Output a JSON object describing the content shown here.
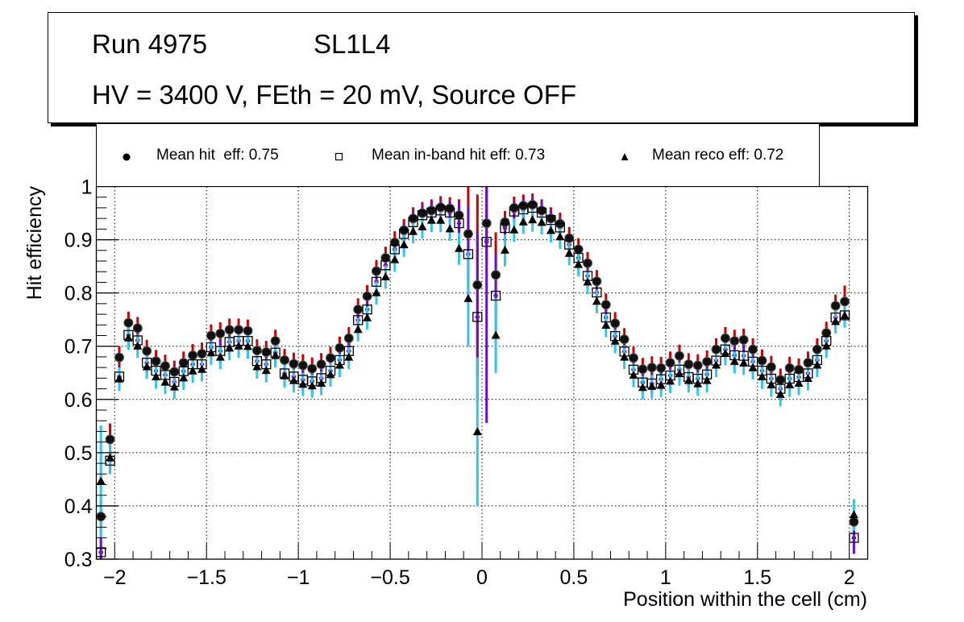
{
  "header": {
    "run_label": "Run 4975",
    "layer_label": "SL1L4",
    "conditions": "HV = 3400 V, FEth = 20 mV, Source OFF"
  },
  "legend": [
    {
      "marker": "filled-circle",
      "label": "Mean hit  eff: 0.75"
    },
    {
      "marker": "open-square",
      "label": "Mean in-band hit eff: 0.73"
    },
    {
      "marker": "filled-triangle",
      "label": "Mean reco eff: 0.72"
    }
  ],
  "chart_data": {
    "type": "scatter",
    "title": "Run 4975 SL1L4 — HV = 3400 V, FEth = 20 mV, Source OFF",
    "xlabel": "Position within the cell (cm)",
    "ylabel": "Hit efficiency",
    "xlim": [
      -2.1,
      2.1
    ],
    "ylim": [
      0.3,
      1.0
    ],
    "grid": true,
    "legend_position": "top",
    "xticks": [
      -2,
      -1.5,
      -1,
      -0.5,
      0,
      0.5,
      1,
      1.5,
      2
    ],
    "xtick_labels": [
      "−2",
      "−1.5",
      "−1",
      "−0.5",
      "0",
      "0.5",
      "1",
      "1.5",
      "2"
    ],
    "yticks": [
      0.3,
      0.4,
      0.5,
      0.6,
      0.7,
      0.8,
      0.9,
      1.0
    ],
    "ytick_labels": [
      "0.3",
      "0.4",
      "0.5",
      "0.6",
      "0.7",
      "0.8",
      "0.9",
      "1"
    ],
    "x": [
      -2.075,
      -2.025,
      -1.975,
      -1.925,
      -1.875,
      -1.825,
      -1.775,
      -1.725,
      -1.675,
      -1.625,
      -1.575,
      -1.525,
      -1.475,
      -1.425,
      -1.375,
      -1.325,
      -1.275,
      -1.225,
      -1.175,
      -1.125,
      -1.075,
      -1.025,
      -0.975,
      -0.925,
      -0.875,
      -0.825,
      -0.775,
      -0.725,
      -0.675,
      -0.625,
      -0.575,
      -0.525,
      -0.475,
      -0.425,
      -0.375,
      -0.325,
      -0.275,
      -0.225,
      -0.175,
      -0.125,
      -0.075,
      -0.025,
      0.025,
      0.075,
      0.125,
      0.175,
      0.225,
      0.275,
      0.325,
      0.375,
      0.425,
      0.475,
      0.525,
      0.575,
      0.625,
      0.675,
      0.725,
      0.775,
      0.825,
      0.875,
      0.925,
      0.975,
      1.025,
      1.075,
      1.125,
      1.175,
      1.225,
      1.275,
      1.325,
      1.375,
      1.425,
      1.475,
      1.525,
      1.575,
      1.625,
      1.675,
      1.725,
      1.775,
      1.825,
      1.875,
      1.925,
      1.975,
      2.025
    ],
    "series": [
      {
        "name": "Mean hit  eff: 0.75",
        "marker": "filled-circle",
        "color": "#000000",
        "error_color": "#cc0000",
        "values": [
          0.38,
          0.525,
          0.679,
          0.744,
          0.734,
          0.691,
          0.672,
          0.663,
          0.652,
          0.669,
          0.683,
          0.686,
          0.72,
          0.724,
          0.731,
          0.731,
          0.729,
          0.692,
          0.689,
          0.71,
          0.674,
          0.667,
          0.664,
          0.658,
          0.666,
          0.678,
          0.697,
          0.715,
          0.769,
          0.794,
          0.841,
          0.866,
          0.895,
          0.918,
          0.94,
          0.95,
          0.955,
          0.961,
          0.959,
          0.946,
          0.911,
          0.815,
          0.931,
          0.834,
          0.933,
          0.96,
          0.964,
          0.966,
          0.955,
          0.94,
          0.93,
          0.903,
          0.882,
          0.856,
          0.822,
          0.778,
          0.743,
          0.713,
          0.678,
          0.657,
          0.66,
          0.659,
          0.669,
          0.682,
          0.666,
          0.664,
          0.671,
          0.694,
          0.715,
          0.71,
          0.712,
          0.694,
          0.673,
          0.661,
          0.637,
          0.659,
          0.656,
          0.669,
          0.694,
          0.725,
          0.776,
          0.784,
          0.37
        ],
        "errors": [
          0.03,
          0.03,
          0.021,
          0.021,
          0.021,
          0.021,
          0.021,
          0.021,
          0.021,
          0.021,
          0.021,
          0.021,
          0.021,
          0.021,
          0.021,
          0.021,
          0.021,
          0.021,
          0.021,
          0.021,
          0.021,
          0.021,
          0.021,
          0.021,
          0.021,
          0.021,
          0.021,
          0.021,
          0.021,
          0.021,
          0.021,
          0.021,
          0.021,
          0.021,
          0.021,
          0.021,
          0.021,
          0.021,
          0.021,
          0.03,
          0.09,
          0.17,
          0.07,
          0.08,
          0.021,
          0.021,
          0.021,
          0.021,
          0.021,
          0.021,
          0.021,
          0.021,
          0.021,
          0.021,
          0.021,
          0.021,
          0.021,
          0.021,
          0.021,
          0.021,
          0.021,
          0.021,
          0.021,
          0.021,
          0.021,
          0.021,
          0.021,
          0.021,
          0.021,
          0.021,
          0.021,
          0.021,
          0.021,
          0.021,
          0.021,
          0.021,
          0.021,
          0.021,
          0.021,
          0.021,
          0.021,
          0.03,
          0.02
        ]
      },
      {
        "name": "Mean in-band hit eff: 0.73",
        "marker": "open-square",
        "color": "#000000",
        "error_color": "#6a0dcc",
        "values": [
          0.313,
          0.485,
          0.643,
          0.721,
          0.711,
          0.669,
          0.654,
          0.646,
          0.633,
          0.653,
          0.666,
          0.666,
          0.698,
          0.691,
          0.708,
          0.71,
          0.71,
          0.672,
          0.666,
          0.688,
          0.649,
          0.643,
          0.637,
          0.634,
          0.64,
          0.654,
          0.674,
          0.691,
          0.749,
          0.769,
          0.821,
          0.852,
          0.882,
          0.911,
          0.933,
          0.946,
          0.951,
          0.955,
          0.951,
          0.931,
          0.873,
          0.755,
          0.896,
          0.795,
          0.922,
          0.953,
          0.957,
          0.96,
          0.951,
          0.937,
          0.923,
          0.891,
          0.866,
          0.832,
          0.801,
          0.754,
          0.719,
          0.69,
          0.656,
          0.632,
          0.63,
          0.638,
          0.645,
          0.656,
          0.642,
          0.639,
          0.647,
          0.673,
          0.694,
          0.683,
          0.682,
          0.671,
          0.654,
          0.639,
          0.62,
          0.639,
          0.642,
          0.649,
          0.674,
          0.71,
          0.754,
          0.758,
          0.34
        ],
        "errors": [
          0.03,
          0.025,
          0.021,
          0.021,
          0.021,
          0.021,
          0.021,
          0.021,
          0.021,
          0.021,
          0.021,
          0.021,
          0.021,
          0.021,
          0.021,
          0.021,
          0.021,
          0.021,
          0.021,
          0.021,
          0.021,
          0.021,
          0.021,
          0.021,
          0.021,
          0.021,
          0.021,
          0.021,
          0.021,
          0.021,
          0.021,
          0.021,
          0.021,
          0.021,
          0.021,
          0.021,
          0.021,
          0.021,
          0.021,
          0.04,
          0.09,
          0.16,
          0.34,
          0.08,
          0.021,
          0.021,
          0.021,
          0.021,
          0.021,
          0.021,
          0.021,
          0.021,
          0.021,
          0.021,
          0.021,
          0.021,
          0.021,
          0.021,
          0.021,
          0.021,
          0.021,
          0.021,
          0.021,
          0.021,
          0.021,
          0.021,
          0.021,
          0.021,
          0.021,
          0.021,
          0.021,
          0.021,
          0.021,
          0.021,
          0.021,
          0.021,
          0.021,
          0.021,
          0.021,
          0.021,
          0.021,
          0.021,
          0.03
        ]
      },
      {
        "name": "Mean reco eff: 0.72",
        "marker": "filled-triangle",
        "color": "#000000",
        "error_color": "#33c4ee",
        "values": [
          0.446,
          0.49,
          0.638,
          0.715,
          0.7,
          0.661,
          0.642,
          0.632,
          0.623,
          0.64,
          0.653,
          0.656,
          0.687,
          0.679,
          0.696,
          0.7,
          0.699,
          0.661,
          0.654,
          0.682,
          0.644,
          0.635,
          0.628,
          0.625,
          0.63,
          0.646,
          0.664,
          0.679,
          0.731,
          0.753,
          0.8,
          0.83,
          0.862,
          0.89,
          0.915,
          0.924,
          0.936,
          0.936,
          0.92,
          0.883,
          0.789,
          0.539,
          null,
          0.72,
          0.88,
          0.918,
          0.933,
          0.937,
          0.932,
          0.917,
          0.905,
          0.874,
          0.853,
          0.82,
          0.784,
          0.739,
          0.709,
          0.679,
          0.645,
          0.622,
          0.624,
          0.626,
          0.634,
          0.648,
          0.635,
          0.629,
          0.635,
          0.664,
          0.686,
          0.671,
          0.668,
          0.659,
          0.642,
          0.627,
          0.609,
          0.627,
          0.63,
          0.639,
          0.664,
          0.7,
          0.746,
          0.757,
          0.383
        ],
        "errors": [
          0.105,
          0.03,
          0.022,
          0.022,
          0.022,
          0.022,
          0.022,
          0.022,
          0.022,
          0.022,
          0.022,
          0.022,
          0.022,
          0.022,
          0.022,
          0.022,
          0.022,
          0.022,
          0.022,
          0.022,
          0.022,
          0.022,
          0.022,
          0.022,
          0.022,
          0.022,
          0.022,
          0.022,
          0.022,
          0.022,
          0.022,
          0.022,
          0.022,
          0.022,
          0.022,
          0.022,
          0.022,
          0.022,
          0.022,
          0.03,
          0.09,
          0.14,
          null,
          0.07,
          0.03,
          0.022,
          0.022,
          0.022,
          0.022,
          0.022,
          0.022,
          0.022,
          0.022,
          0.022,
          0.022,
          0.022,
          0.022,
          0.022,
          0.022,
          0.022,
          0.022,
          0.022,
          0.022,
          0.022,
          0.022,
          0.022,
          0.022,
          0.022,
          0.022,
          0.022,
          0.022,
          0.022,
          0.022,
          0.022,
          0.022,
          0.022,
          0.022,
          0.022,
          0.022,
          0.022,
          0.022,
          0.022,
          0.03
        ]
      }
    ]
  }
}
